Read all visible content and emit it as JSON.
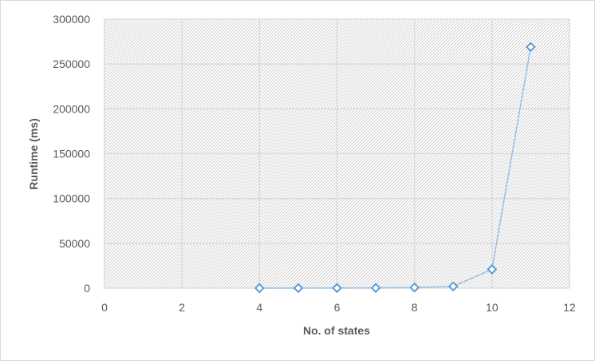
{
  "chart_data": {
    "type": "scatter",
    "title": "",
    "xlabel": "No. of states",
    "ylabel": "Runtime (ms)",
    "xlim": [
      0,
      12
    ],
    "ylim": [
      0,
      300000
    ],
    "xticks": [
      "0",
      "2",
      "4",
      "6",
      "8",
      "10",
      "12"
    ],
    "yticks": [
      "0",
      "50000",
      "100000",
      "150000",
      "200000",
      "250000",
      "300000"
    ],
    "grid": true,
    "legend": "none",
    "series": [
      {
        "x": [
          4,
          5,
          6,
          7,
          8,
          9,
          10,
          11
        ],
        "y": [
          50,
          100,
          200,
          300,
          700,
          2000,
          21000,
          269000
        ],
        "color": "#5b9bd5",
        "line_color": "#9dc3e6",
        "marker": "diamond-open"
      }
    ]
  }
}
